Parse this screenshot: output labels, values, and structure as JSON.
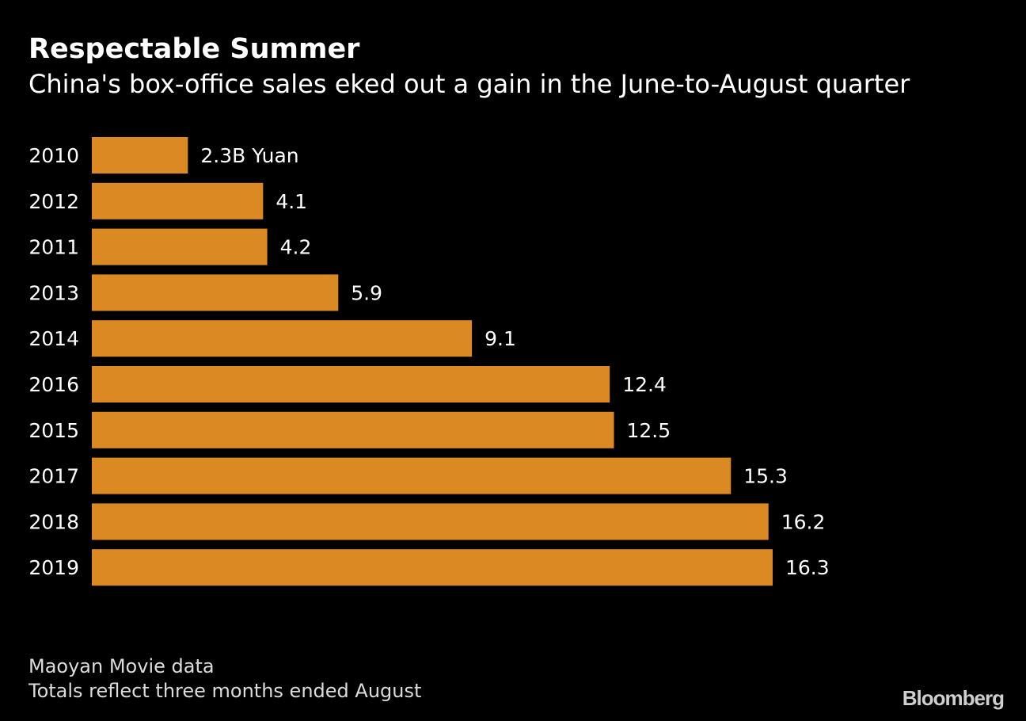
{
  "header": {
    "title": "Respectable Summer",
    "subtitle": "China's box-office sales eked out a gain in the June-to-August quarter"
  },
  "footer": {
    "source": "Maoyan Movie data",
    "note": "Totals reflect three months ended August",
    "brand": "Bloomberg"
  },
  "colors": {
    "background": "#000000",
    "bar": "#db8a23",
    "text": "#ffffff"
  },
  "chart_data": {
    "type": "bar",
    "orientation": "horizontal",
    "title": "Respectable Summer",
    "subtitle": "China's box-office sales eked out a gain in the June-to-August quarter",
    "categories": [
      "2010",
      "2012",
      "2011",
      "2013",
      "2014",
      "2016",
      "2015",
      "2017",
      "2018",
      "2019"
    ],
    "values": [
      2.3,
      4.1,
      4.2,
      5.9,
      9.1,
      12.4,
      12.5,
      15.3,
      16.2,
      16.3
    ],
    "value_labels": [
      "2.3B Yuan",
      "4.1",
      "4.2",
      "5.9",
      "9.1",
      "12.4",
      "12.5",
      "15.3",
      "16.2",
      "16.3"
    ],
    "unit": "B Yuan",
    "xlim": [
      0,
      16.3
    ],
    "grid": false,
    "legend": "none"
  }
}
